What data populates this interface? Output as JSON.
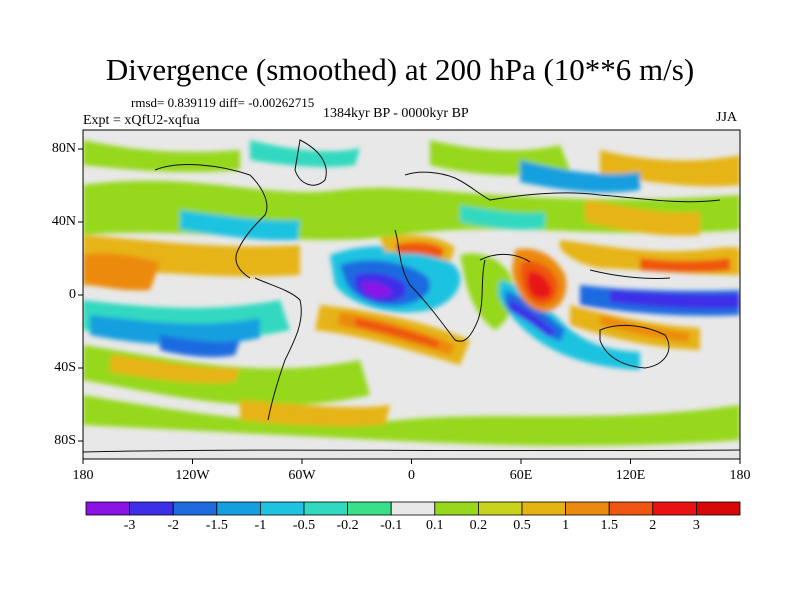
{
  "title": "Divergence (smoothed) at 200 hPa (10**6 m/s)",
  "stats": "rmsd= 0.839119 diff= -0.00262715",
  "subtitle": "1384kyr BP - 0000kyr BP",
  "experiment": "Expt = xQfU2-xqfua",
  "season": "JJA",
  "map": {
    "lat_ticks": [
      "80N",
      "40N",
      "0",
      "40S",
      "80S"
    ],
    "lon_ticks": [
      "180",
      "120W",
      "60W",
      "0",
      "60E",
      "120E",
      "180"
    ]
  },
  "colorbar": {
    "labels": [
      "-3",
      "-2",
      "-1.5",
      "-1",
      "-0.5",
      "-0.2",
      "-0.1",
      "0.1",
      "0.2",
      "0.5",
      "1",
      "1.5",
      "2",
      "3"
    ],
    "colors": [
      "#8a14e6",
      "#3d2ee8",
      "#1e6be0",
      "#159fdf",
      "#1ec3e0",
      "#30d9c0",
      "#38e08a",
      "#e8e8e8",
      "#96d81c",
      "#c9d21a",
      "#e6b412",
      "#ec8a10",
      "#ee5510",
      "#e81212",
      "#d80808"
    ]
  }
}
